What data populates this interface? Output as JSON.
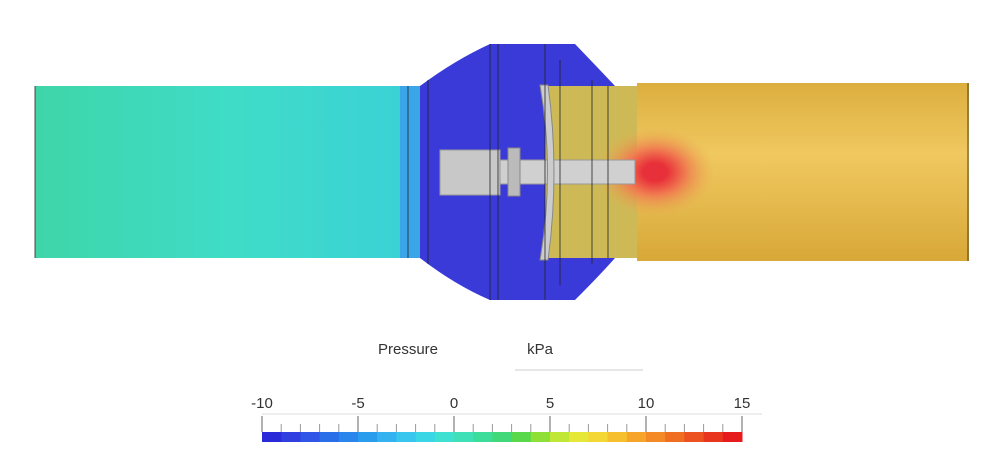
{
  "legend": {
    "title": "Pressure",
    "unit": "kPa",
    "lim": [
      -10,
      15
    ],
    "ticks": [
      -10,
      -5,
      0,
      5,
      10,
      15
    ],
    "minor_tick_step": 1,
    "colors": [
      "#2a2ad8",
      "#2f3fe0",
      "#2f56e6",
      "#2a6ee8",
      "#2a86ec",
      "#2a9cee",
      "#33b2ef",
      "#38c6ee",
      "#3ad6e6",
      "#3ee0d2",
      "#3fe0b8",
      "#3cdc9a",
      "#40d878",
      "#5ad84c",
      "#8ee036",
      "#c0e636",
      "#e6e838",
      "#f4d634",
      "#f6bf2e",
      "#f6a52a",
      "#f48a26",
      "#f06e22",
      "#ec5220",
      "#e8361e",
      "#e61c1c"
    ]
  }
}
